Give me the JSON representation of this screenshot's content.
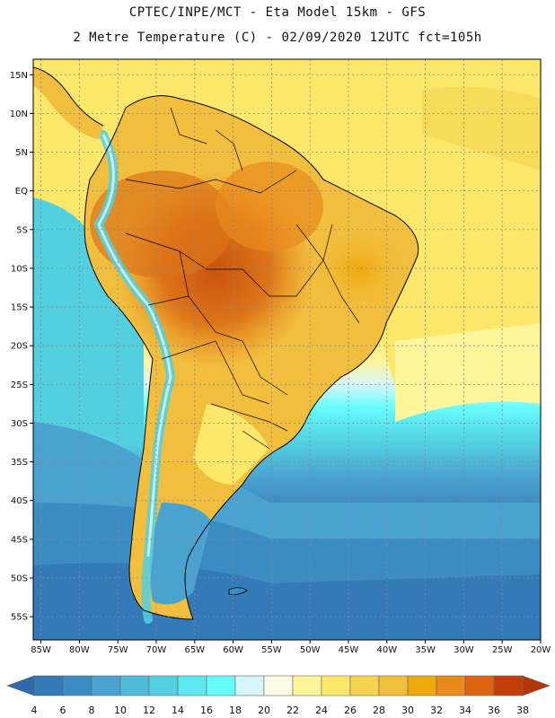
{
  "header": {
    "line1": "CPTEC/INPE/MCT -  Eta Model 15km - GFS",
    "line2": "2 Metre Temperature (C) - 02/09/2020 12UTC fct=105h"
  },
  "map": {
    "region": "South America",
    "lat_range": [
      -58,
      17
    ],
    "lon_range": [
      -86,
      -20
    ],
    "lat_labels": [
      "15N",
      "10N",
      "5N",
      "EQ",
      "5S",
      "10S",
      "15S",
      "20S",
      "25S",
      "30S",
      "35S",
      "40S",
      "45S",
      "50S",
      "55S"
    ],
    "lon_labels": [
      "85W",
      "80W",
      "75W",
      "70W",
      "65W",
      "60W",
      "55W",
      "50W",
      "45W",
      "40W",
      "35W",
      "30W",
      "25W",
      "20W"
    ]
  },
  "colorbar": {
    "labels": [
      "4",
      "6",
      "8",
      "10",
      "12",
      "14",
      "16",
      "18",
      "20",
      "22",
      "24",
      "26",
      "28",
      "30",
      "32",
      "34",
      "36",
      "38"
    ],
    "colors": [
      "#2c6aad",
      "#3479b8",
      "#3c8cc4",
      "#4aa2d0",
      "#4fbad8",
      "#52d0e0",
      "#5ce8ee",
      "#66fdfd",
      "#d6f6fc",
      "#fffbe6",
      "#fff59a",
      "#fde86c",
      "#f7d24f",
      "#f2be3e",
      "#f0a90a",
      "#ea8a1c",
      "#dc6410",
      "#c43f06",
      "#b5350a"
    ]
  }
}
